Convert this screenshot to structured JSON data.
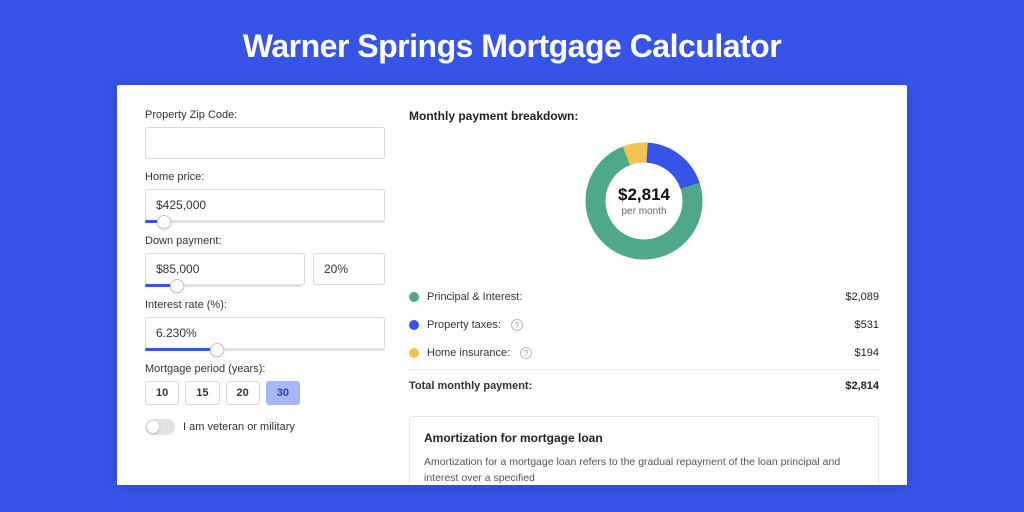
{
  "page": {
    "title": "Warner Springs Mortgage Calculator",
    "background_color": "#3754e8"
  },
  "form": {
    "zip": {
      "label": "Property Zip Code:",
      "value": ""
    },
    "home_price": {
      "label": "Home price:",
      "value": "$425,000",
      "slider_percent": 8
    },
    "down_payment": {
      "label": "Down payment:",
      "amount": "$85,000",
      "percent": "20%",
      "slider_percent": 20
    },
    "interest_rate": {
      "label": "Interest rate (%):",
      "value": "6.230%",
      "slider_percent": 30
    },
    "mortgage_period": {
      "label": "Mortgage period (years):",
      "options": [
        "10",
        "15",
        "20",
        "30"
      ],
      "selected_index": 3
    },
    "veteran": {
      "label": "I am veteran or military",
      "value": false
    }
  },
  "breakdown": {
    "title": "Monthly payment breakdown:",
    "donut": {
      "amount": "$2,814",
      "sub": "per month",
      "segments": [
        {
          "name": "principal_interest",
          "pct": 74.2,
          "color": "#4fa888"
        },
        {
          "name": "property_taxes",
          "pct": 18.9,
          "color": "#3754e8"
        },
        {
          "name": "home_insurance",
          "pct": 6.9,
          "color": "#f0c451"
        }
      ],
      "stroke_width": 20
    },
    "items": [
      {
        "dot_color": "#4fa888",
        "label": "Principal & Interest:",
        "info": false,
        "value": "$2,089"
      },
      {
        "dot_color": "#3754e8",
        "label": "Property taxes:",
        "info": true,
        "value": "$531"
      },
      {
        "dot_color": "#f0c451",
        "label": "Home insurance:",
        "info": true,
        "value": "$194"
      }
    ],
    "total": {
      "label": "Total monthly payment:",
      "value": "$2,814"
    }
  },
  "amortization": {
    "title": "Amortization for mortgage loan",
    "text": "Amortization for a mortgage loan refers to the gradual repayment of the loan principal and interest over a specified"
  }
}
